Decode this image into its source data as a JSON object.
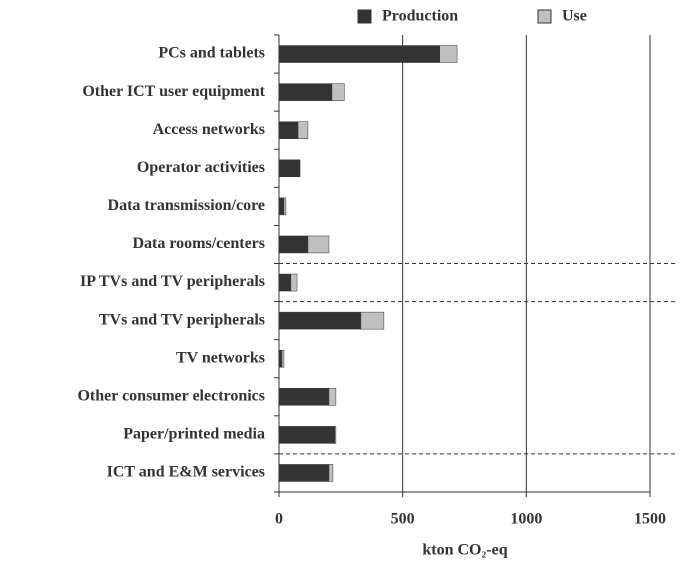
{
  "chart_data": {
    "type": "stacked_barh",
    "categories": [
      "PCs and tablets",
      "Other ICT user equipment",
      "Access networks",
      "Operator activities",
      "Data transmission/core",
      "Data rooms/centers",
      "IP TVs and TV peripherals",
      "TVs and TV peripherals",
      "TV networks",
      "Other consumer electronics",
      "Paper/printed media",
      "ICT and E&M services"
    ],
    "series": [
      {
        "name": "Production",
        "color": "#333333",
        "values": [
          650,
          214,
          77,
          85,
          20,
          117,
          48,
          331,
          12,
          202,
          226,
          202
        ]
      },
      {
        "name": "Use",
        "color": "#c0c0c0",
        "values": [
          70,
          50,
          40,
          0,
          8,
          85,
          25,
          93,
          8,
          28,
          4,
          16
        ]
      }
    ],
    "xlabel": "kton CO₂-eq",
    "xlim": [
      0,
      1500
    ],
    "xticks": [
      0,
      500,
      1000,
      1500
    ],
    "grid": true,
    "legend": "top"
  }
}
